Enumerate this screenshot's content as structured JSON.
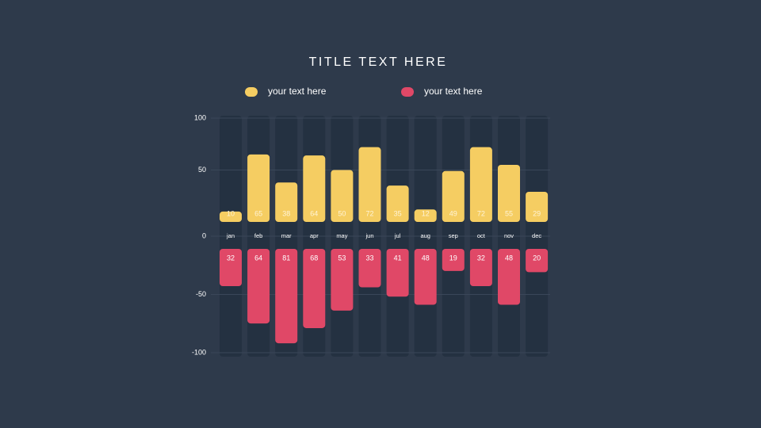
{
  "chart_data": {
    "type": "bar",
    "title": "TITLE TEXT HERE",
    "categories": [
      "jan",
      "feb",
      "mar",
      "apr",
      "may",
      "jun",
      "jul",
      "aug",
      "sep",
      "oct",
      "nov",
      "dec"
    ],
    "series": [
      {
        "name": "your text here",
        "color": "#f5cd62",
        "values": [
          10,
          65,
          38,
          64,
          50,
          72,
          35,
          12,
          49,
          72,
          55,
          29
        ]
      },
      {
        "name": "your text here",
        "color": "#e04867",
        "values": [
          -32,
          -64,
          -81,
          -68,
          -53,
          -33,
          -41,
          -48,
          -19,
          -32,
          -48,
          -20
        ],
        "value_labels": [
          "32",
          "64",
          "81",
          "68",
          "53",
          "33",
          "41",
          "48",
          "19",
          "32",
          "48",
          "20"
        ]
      }
    ],
    "ylim": [
      -100,
      100
    ],
    "yticks": [
      100,
      50,
      0,
      -50,
      -100
    ],
    "grid": true
  }
}
